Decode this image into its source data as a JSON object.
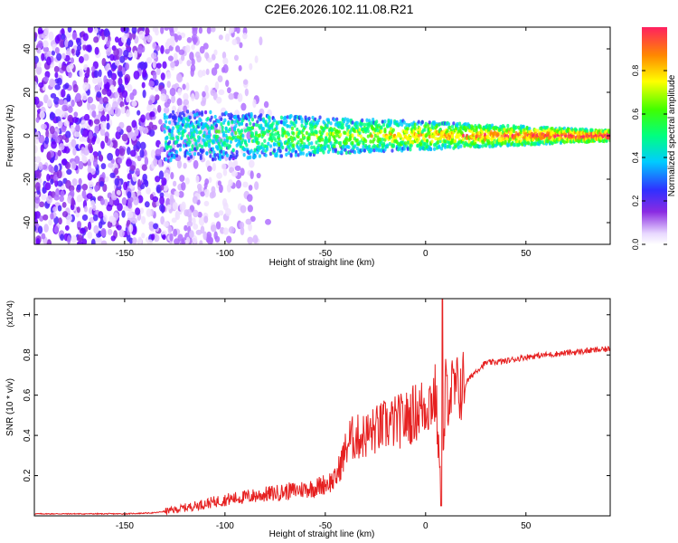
{
  "title": "C2E6.2026.102.11.08.R21",
  "colors": {
    "snr_line": "#e62020",
    "axis": "#000000"
  },
  "chart_data": [
    {
      "type": "heatmap",
      "title": "C2E6.2026.102.11.08.R21",
      "xlabel": "Height of straight line (km)",
      "ylabel": "Frequency (Hz)",
      "xlim": [
        -195,
        92
      ],
      "ylim": [
        -50,
        50
      ],
      "x_ticks": [
        -150,
        -100,
        -50,
        0,
        50
      ],
      "y_ticks": [
        -40,
        -20,
        0,
        20,
        40
      ],
      "colorbar": {
        "label": "Normalized spectral amplitude",
        "range": [
          0,
          1
        ],
        "ticks": [
          0,
          0.2,
          0.4,
          0.6,
          0.8
        ]
      },
      "description_values": {
        "noise_region_x": [
          -195,
          -130
        ],
        "signal_start_x": -130,
        "signal_center_freq": 0
      }
    },
    {
      "type": "line",
      "title": "",
      "xlabel": "Height of straight line (km)",
      "ylabel": "SNR (10 * v/v)",
      "y_multiplier_label": "(x10^4)",
      "xlim": [
        -195,
        92
      ],
      "ylim": [
        0,
        1.08
      ],
      "x_ticks": [
        -150,
        -100,
        -50,
        0,
        50
      ],
      "y_ticks": [
        0.2,
        0.4,
        0.6,
        0.8,
        1
      ],
      "series": [
        {
          "name": "SNR",
          "x": [
            -195,
            -170,
            -150,
            -135,
            -125,
            -115,
            -100,
            -85,
            -70,
            -55,
            -45,
            -38,
            -30,
            -20,
            -10,
            0,
            5,
            8,
            10,
            15,
            20,
            25,
            30,
            40,
            50,
            60,
            70,
            80,
            92
          ],
          "y": [
            0.01,
            0.01,
            0.01,
            0.015,
            0.03,
            0.05,
            0.08,
            0.1,
            0.12,
            0.14,
            0.18,
            0.38,
            0.4,
            0.45,
            0.48,
            0.55,
            0.6,
            0.05,
            0.62,
            0.62,
            0.66,
            0.72,
            0.76,
            0.77,
            0.79,
            0.8,
            0.81,
            0.82,
            0.83
          ]
        }
      ]
    }
  ]
}
